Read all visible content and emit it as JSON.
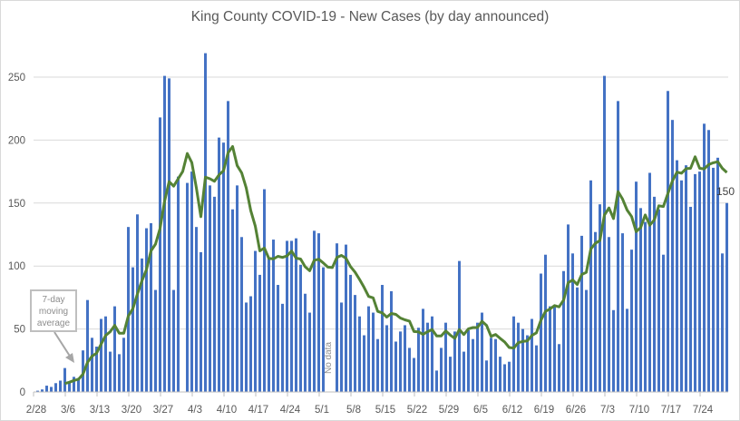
{
  "chart_data": {
    "type": "bar",
    "title": "King County COVID-19 - New Cases (by day announced)",
    "xlabel": "",
    "ylabel": "",
    "ylim": [
      0,
      270
    ],
    "grid": true,
    "start_date": "2/28",
    "x_tick_labels": [
      "2/28",
      "3/6",
      "3/13",
      "3/20",
      "3/27",
      "4/3",
      "4/10",
      "4/17",
      "4/24",
      "5/1",
      "5/8",
      "5/15",
      "5/22",
      "5/29",
      "6/5",
      "6/12",
      "6/19",
      "6/26",
      "7/3",
      "7/10",
      "7/17",
      "7/24"
    ],
    "y_tick_labels": [
      "0",
      "50",
      "100",
      "150",
      "200",
      "250"
    ],
    "y_ticks": [
      0,
      50,
      100,
      150,
      200,
      250
    ],
    "series": [
      {
        "name": "New Cases",
        "type": "bar",
        "color": "#4472C4",
        "values": [
          1,
          2,
          5,
          4,
          7,
          9,
          19,
          8,
          12,
          11,
          33,
          73,
          43,
          36,
          58,
          60,
          32,
          68,
          30,
          43,
          131,
          99,
          141,
          106,
          130,
          134,
          81,
          218,
          251,
          249,
          81,
          171,
          null,
          166,
          175,
          131,
          111,
          269,
          164,
          155,
          202,
          198,
          231,
          145,
          164,
          123,
          71,
          76,
          112,
          93,
          161,
          106,
          121,
          85,
          70,
          120,
          120,
          122,
          101,
          78,
          63,
          128,
          126,
          99,
          null,
          null,
          118,
          71,
          117,
          93,
          77,
          60,
          45,
          68,
          63,
          42,
          85,
          53,
          80,
          40,
          48,
          53,
          35,
          27,
          51,
          66,
          55,
          60,
          17,
          35,
          55,
          28,
          48,
          104,
          32,
          49,
          42,
          55,
          63,
          25,
          43,
          42,
          28,
          22,
          24,
          60,
          55,
          50,
          45,
          58,
          37,
          94,
          109,
          68,
          69,
          38,
          96,
          133,
          110,
          83,
          124,
          81,
          168,
          127,
          149,
          251,
          123,
          65,
          231,
          126,
          66,
          113,
          167,
          146,
          135,
          174,
          155,
          145,
          109,
          239,
          216,
          184,
          168,
          180,
          147,
          173,
          175,
          213,
          208,
          178,
          186,
          110,
          150
        ]
      },
      {
        "name": "7-day moving average",
        "type": "line",
        "color": "#548235",
        "window": 7
      }
    ],
    "annotations": {
      "moving_average_label": "7-day moving average",
      "no_data_label": "No data",
      "last_value_label": "150"
    }
  }
}
